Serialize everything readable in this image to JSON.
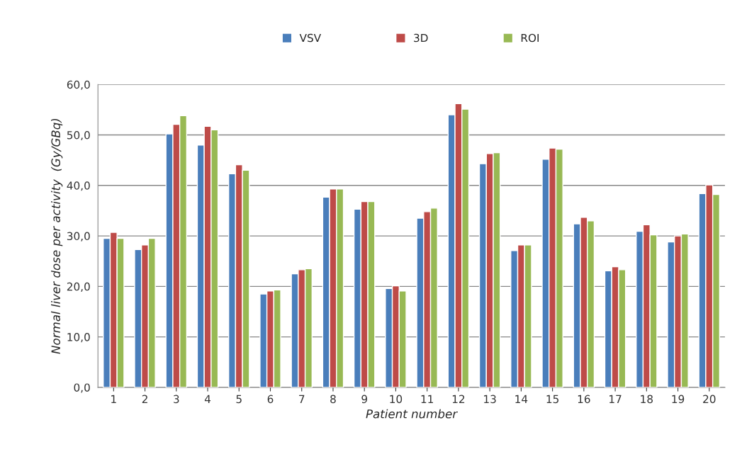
{
  "chart_data": {
    "type": "bar",
    "xlabel": "Patient number",
    "ylabel": "Normal liver dose per activity  (Gy/GBq)",
    "categories": [
      "1",
      "2",
      "3",
      "4",
      "5",
      "6",
      "7",
      "8",
      "9",
      "10",
      "11",
      "12",
      "13",
      "14",
      "15",
      "16",
      "17",
      "18",
      "19",
      "20"
    ],
    "series": [
      {
        "name": "VSV",
        "color": "#4a7ebb",
        "values": [
          29.5,
          27.3,
          50.2,
          48.0,
          42.3,
          18.5,
          22.5,
          37.7,
          35.3,
          19.6,
          33.5,
          54.0,
          44.3,
          27.1,
          45.2,
          32.4,
          23.1,
          30.9,
          28.8,
          38.4
        ]
      },
      {
        "name": "3D",
        "color": "#be4b48",
        "values": [
          30.7,
          28.2,
          52.1,
          51.7,
          44.1,
          19.1,
          23.3,
          39.3,
          36.8,
          20.1,
          34.8,
          56.2,
          46.3,
          28.2,
          47.4,
          33.7,
          23.9,
          32.2,
          30.0,
          40.1
        ]
      },
      {
        "name": "ROI",
        "color": "#98b954",
        "values": [
          29.5,
          29.5,
          53.8,
          51.0,
          43.0,
          19.3,
          23.5,
          39.3,
          36.8,
          19.1,
          35.5,
          55.1,
          46.5,
          28.2,
          47.2,
          33.0,
          23.3,
          30.2,
          30.4,
          38.2
        ]
      }
    ],
    "ylim": [
      0,
      60
    ],
    "yticks": [
      {
        "value": 0,
        "label": "0,0"
      },
      {
        "value": 10,
        "label": "10,0"
      },
      {
        "value": 20,
        "label": "20,0"
      },
      {
        "value": 30,
        "label": "30,0"
      },
      {
        "value": 40,
        "label": "40,0"
      },
      {
        "value": 50,
        "label": "50,0"
      },
      {
        "value": 60,
        "label": "60,0"
      }
    ],
    "grid": "y",
    "legend": "top"
  }
}
